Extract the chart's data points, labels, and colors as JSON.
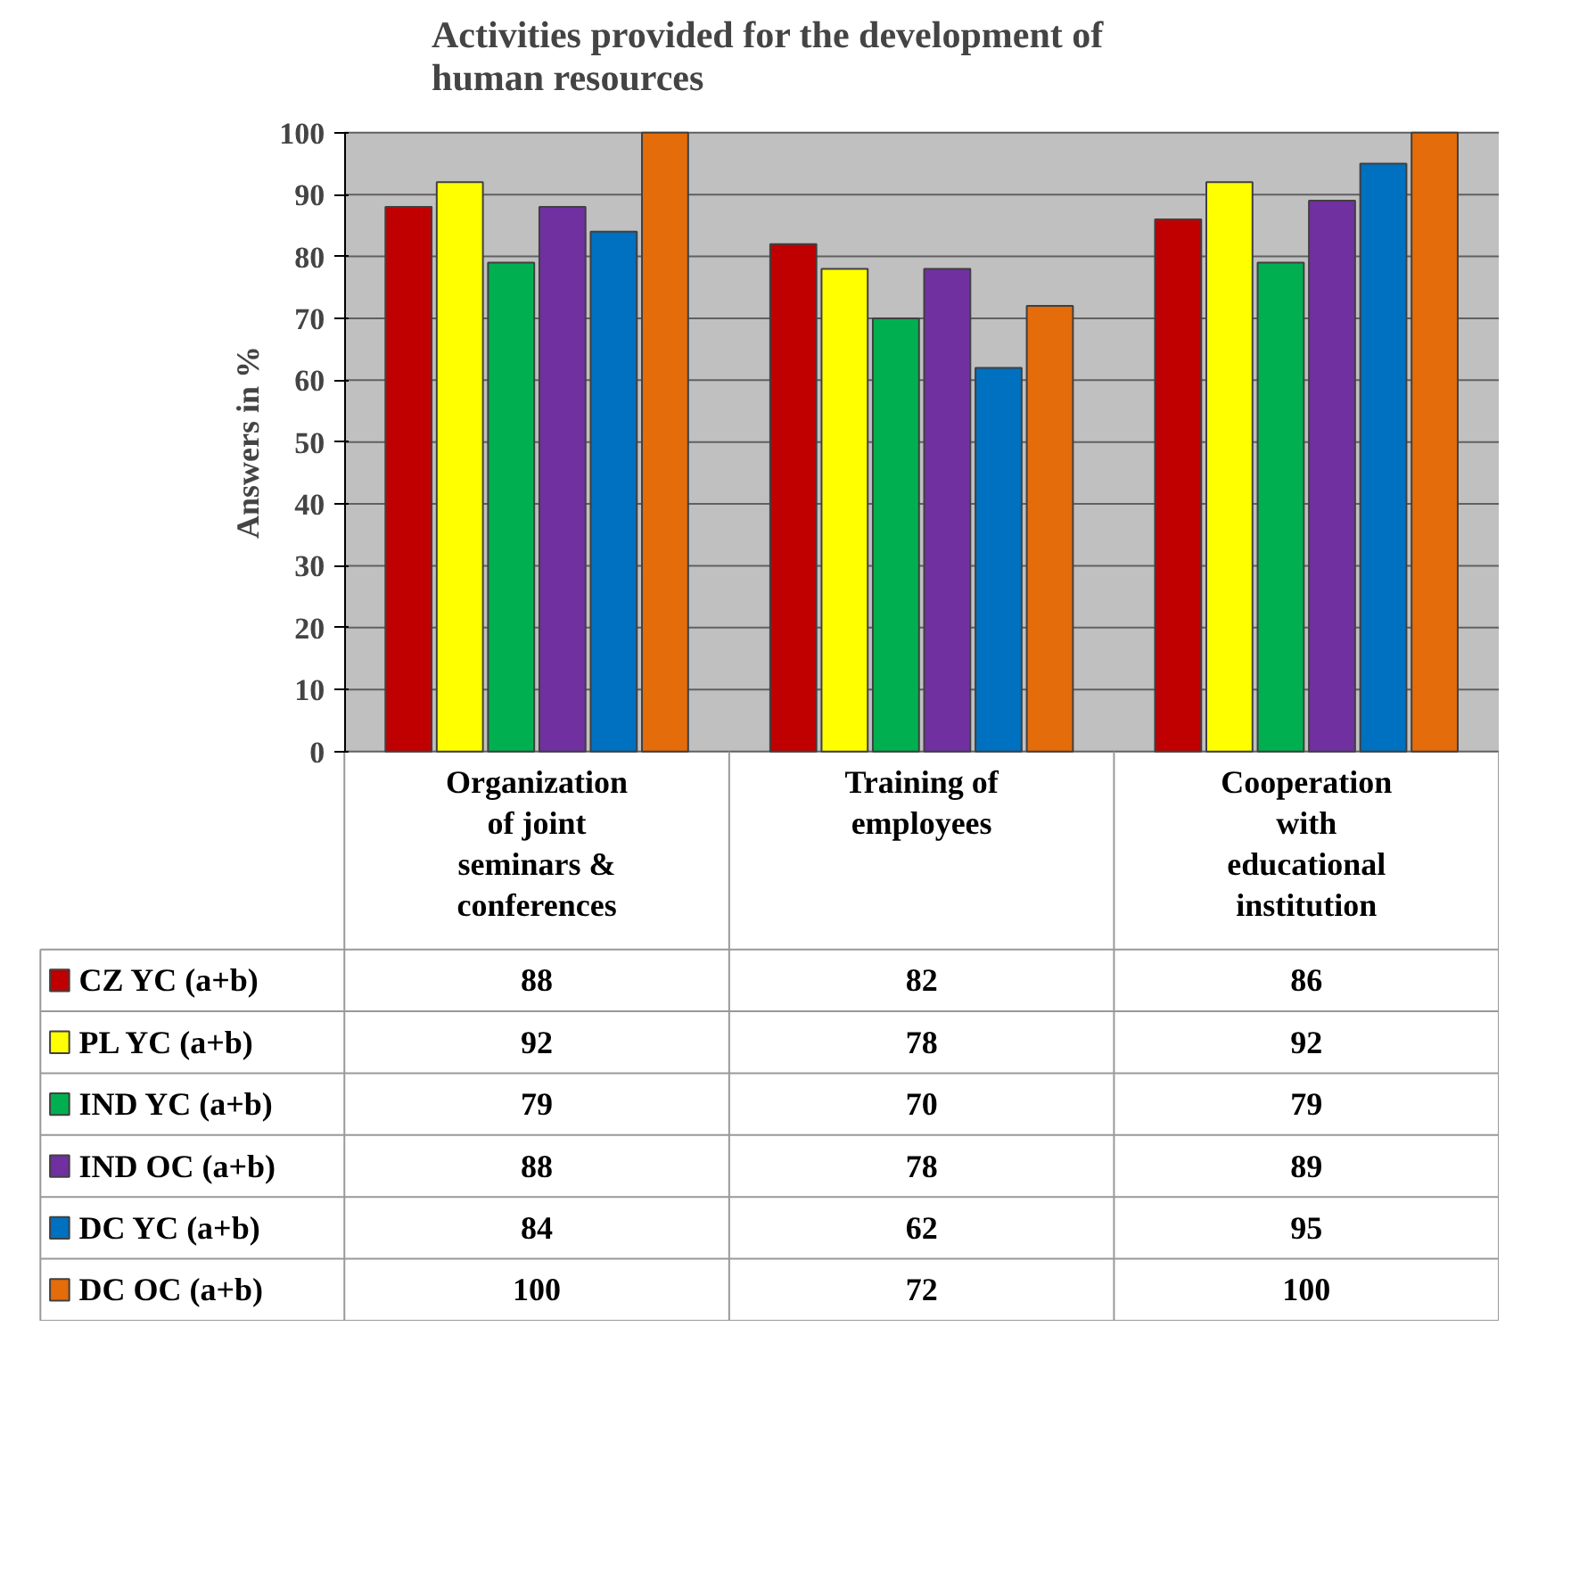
{
  "chart_data": {
    "type": "bar",
    "title": "Activities provided for the development of human resources",
    "ylabel": "Answers in %",
    "categories": [
      "Organization of joint seminars & conferences",
      "Training of employees",
      "Cooperation with educational institution"
    ],
    "series": [
      {
        "name": "CZ YC (a+b)",
        "color": "#c00000",
        "values": [
          88,
          82,
          86
        ]
      },
      {
        "name": "PL YC (a+b)",
        "color": "#ffff00",
        "values": [
          92,
          78,
          92
        ]
      },
      {
        "name": "IND YC (a+b)",
        "color": "#00b050",
        "values": [
          79,
          70,
          79
        ]
      },
      {
        "name": "IND OC (a+b)",
        "color": "#7030a0",
        "values": [
          88,
          78,
          89
        ]
      },
      {
        "name": "DC YC (a+b)",
        "color": "#0070c0",
        "values": [
          84,
          62,
          95
        ]
      },
      {
        "name": "DC OC (a+b)",
        "color": "#e46c0a",
        "values": [
          100,
          72,
          100
        ]
      }
    ],
    "ylim": [
      0,
      100
    ],
    "yticks": [
      0,
      10,
      20,
      30,
      40,
      50,
      60,
      70,
      80,
      90,
      100
    ],
    "grid": "y",
    "data_labels": true,
    "legend": "bottom"
  }
}
